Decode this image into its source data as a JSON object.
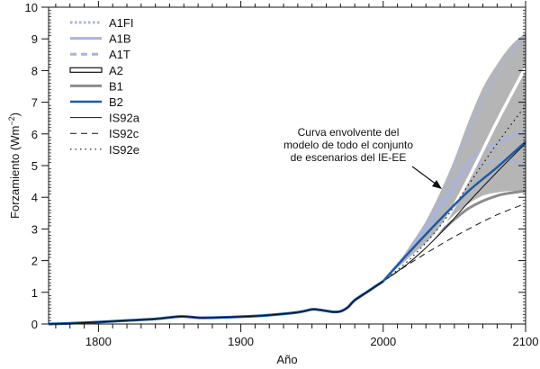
{
  "chart_data": {
    "type": "line",
    "title": "",
    "xlabel": "Año",
    "ylabel": "Forzamiento (Wm⁻²)",
    "ylabel_main": "Forzamiento (Wm",
    "ylabel_sup": "−2",
    "ylabel_close": ")",
    "xlim": [
      1765,
      2100
    ],
    "ylim": [
      0,
      10
    ],
    "x_ticks": [
      1800,
      1900,
      2000,
      2100
    ],
    "x_tick_labels": [
      "1800",
      "1900",
      "2000",
      "2100"
    ],
    "y_ticks": [
      0,
      1,
      2,
      3,
      4,
      5,
      6,
      7,
      8,
      9,
      10
    ],
    "y_tick_labels": [
      "0",
      "1",
      "2",
      "3",
      "4",
      "5",
      "6",
      "7",
      "8",
      "9",
      "10"
    ],
    "legend_position": "top-left",
    "historical": {
      "x": [
        1765,
        1780,
        1800,
        1820,
        1840,
        1858,
        1870,
        1880,
        1900,
        1920,
        1940,
        1950,
        1955,
        1965,
        1970,
        1975,
        1980,
        1990,
        2000
      ],
      "y": [
        0.0,
        0.02,
        0.06,
        0.11,
        0.16,
        0.24,
        0.2,
        0.2,
        0.23,
        0.28,
        0.37,
        0.46,
        0.45,
        0.38,
        0.4,
        0.52,
        0.75,
        1.05,
        1.35
      ]
    },
    "envelope": {
      "label": "Curva envolvente del modelo de todo el conjunto de escenarios del IE-EE",
      "label_lines": [
        "Curva envolvente del",
        "modelo de todo el conjunto",
        "de escenarios del IE-EE"
      ],
      "x": [
        2000,
        2010,
        2020,
        2030,
        2040,
        2050,
        2060,
        2070,
        2080,
        2090,
        2100
      ],
      "upper": [
        1.35,
        1.9,
        2.55,
        3.25,
        4.15,
        5.2,
        6.4,
        7.45,
        8.2,
        8.8,
        9.2
      ],
      "lower": [
        1.35,
        1.7,
        2.1,
        2.55,
        3.0,
        3.45,
        3.8,
        4.05,
        4.15,
        4.2,
        4.15
      ]
    },
    "series": [
      {
        "name": "A1FI",
        "x": [
          2000,
          2020,
          2040,
          2060,
          2080,
          2100
        ],
        "y": [
          1.35,
          2.45,
          3.95,
          6.1,
          7.9,
          9.1
        ]
      },
      {
        "name": "A1B",
        "x": [
          2000,
          2020,
          2040,
          2060,
          2080,
          2100
        ],
        "y": [
          1.35,
          2.4,
          3.7,
          5.1,
          5.7,
          6.1
        ]
      },
      {
        "name": "A1T",
        "x": [
          2000,
          2020,
          2040,
          2060,
          2080,
          2100
        ],
        "y": [
          1.35,
          2.35,
          3.6,
          4.85,
          5.15,
          5.05
        ]
      },
      {
        "name": "A2",
        "x": [
          2000,
          2020,
          2040,
          2060,
          2080,
          2100
        ],
        "y": [
          1.35,
          2.1,
          3.0,
          4.6,
          6.4,
          8.1
        ]
      },
      {
        "name": "B1",
        "x": [
          2000,
          2020,
          2040,
          2060,
          2080,
          2100
        ],
        "y": [
          1.35,
          2.05,
          2.9,
          3.65,
          4.05,
          4.2
        ]
      },
      {
        "name": "B2",
        "x": [
          2000,
          2020,
          2040,
          2060,
          2080,
          2100
        ],
        "y": [
          1.35,
          2.35,
          3.3,
          4.2,
          4.95,
          5.75
        ]
      },
      {
        "name": "IS92a",
        "x": [
          2000,
          2020,
          2040,
          2060,
          2080,
          2100
        ],
        "y": [
          1.35,
          2.0,
          2.85,
          3.85,
          4.8,
          5.7
        ]
      },
      {
        "name": "IS92c",
        "x": [
          2000,
          2020,
          2040,
          2060,
          2080,
          2100
        ],
        "y": [
          1.35,
          1.95,
          2.5,
          3.0,
          3.45,
          3.8
        ]
      },
      {
        "name": "IS92e",
        "x": [
          2000,
          2020,
          2040,
          2060,
          2080,
          2100
        ],
        "y": [
          1.35,
          2.1,
          3.1,
          4.4,
          5.7,
          6.9
        ]
      }
    ]
  },
  "colors": {
    "light_blue": "#a9b4de",
    "dark_blue": "#1c5aa6",
    "gray": "#8c8c8c",
    "envelope": "#b5b5b5",
    "black": "#111111"
  }
}
